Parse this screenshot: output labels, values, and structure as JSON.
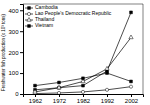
{
  "chart_data": {
    "type": "line",
    "x": [
      1962,
      1972,
      1982,
      1992,
      2002
    ],
    "xlim": [
      1957,
      2007
    ],
    "xticks": [
      1962,
      1972,
      1982,
      1992,
      2002
    ],
    "ylim": [
      0,
      430
    ],
    "yticks": [
      0,
      100,
      200,
      300,
      400
    ],
    "ylabel": "Freshwater fish production (x 10³ tons)",
    "grid": false,
    "legend": "upper left",
    "series": [
      {
        "name": "Cambodia",
        "color": "black",
        "marker": "square",
        "line_style": "solid",
        "values": [
          20,
          30,
          40,
          110,
          390
        ]
      },
      {
        "name": "Lao People's Democratic Republic",
        "color": "black",
        "marker": "open-circle",
        "line_style": "solid",
        "values": [
          2,
          5,
          10,
          20,
          35
        ]
      },
      {
        "name": "Thailand",
        "color": "black",
        "marker": "open-triangle",
        "line_style": "solid",
        "values": [
          10,
          30,
          60,
          120,
          270
        ]
      },
      {
        "name": "Vietnam",
        "color": "black",
        "marker": "square",
        "line_style": "solid",
        "values": [
          40,
          55,
          75,
          100,
          60
        ]
      }
    ]
  }
}
